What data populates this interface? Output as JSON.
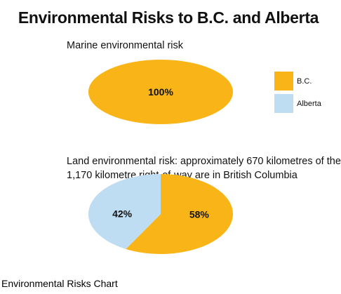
{
  "title": "Environmental Risks to B.C. and Alberta",
  "caption": "Environmental Risks Chart",
  "legend": [
    {
      "label": "B.C.",
      "color": "#F9B517"
    },
    {
      "label": "Alberta",
      "color": "#BFDDF2"
    }
  ],
  "chart_data": [
    {
      "type": "pie",
      "subtitle": "Marine environmental risk",
      "slices": [
        {
          "label": "B.C.",
          "value": 100,
          "text": "100%",
          "color": "#F9B517"
        }
      ]
    },
    {
      "type": "pie",
      "subtitle_lines": [
        "Land environmental risk: approximately 670 kilometres of the",
        "1,170 kilometre right-of-way are in British Columbia"
      ],
      "slices": [
        {
          "label": "B.C.",
          "value": 58,
          "text": "58%",
          "color": "#F9B517"
        },
        {
          "label": "Alberta",
          "value": 42,
          "text": "42%",
          "color": "#BFDDF2"
        }
      ]
    }
  ]
}
